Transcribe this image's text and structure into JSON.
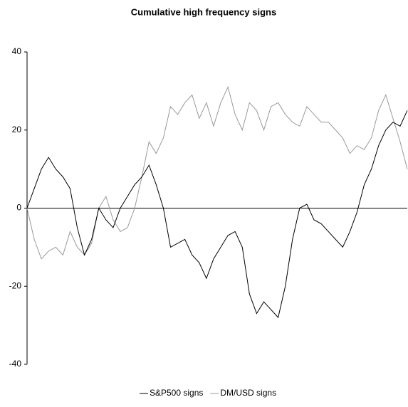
{
  "chart_data": {
    "type": "line",
    "title": "Cumulative high frequency signs",
    "categories": [
      null,
      null,
      null,
      null,
      null,
      null,
      null,
      null,
      null,
      null,
      null,
      null,
      null,
      null,
      null,
      null,
      null,
      null,
      null,
      null,
      null,
      null,
      null,
      null,
      null,
      null,
      null,
      null,
      null,
      null,
      null,
      null,
      null,
      null,
      null,
      null,
      null,
      null,
      null,
      null,
      null,
      null,
      null,
      null,
      null,
      null,
      null,
      null,
      null,
      null,
      null,
      null,
      null,
      null
    ],
    "series": [
      {
        "name": "S&P500 signs",
        "color": "#000000",
        "values": [
          0,
          5,
          10,
          13,
          10,
          8,
          5,
          -5,
          -12,
          -8,
          0,
          -3,
          -5,
          0,
          3,
          6,
          8,
          11,
          6,
          0,
          -10,
          -9,
          -8,
          -12,
          -14,
          -18,
          -13,
          -10,
          -7,
          -6,
          -10,
          -22,
          -27,
          -24,
          -26,
          -28,
          -20,
          -8,
          0,
          1,
          -3,
          -4,
          -6,
          -8,
          -10,
          -6,
          -1,
          6,
          10,
          16,
          20,
          22,
          21,
          25
        ]
      },
      {
        "name": "DM/USD signs",
        "color": "#999999",
        "values": [
          0,
          -8,
          -13,
          -11,
          -10,
          -12,
          -6,
          -10,
          -12,
          -9,
          0,
          3,
          -3,
          -6,
          -5,
          0,
          8,
          17,
          14,
          18,
          26,
          24,
          27,
          29,
          23,
          27,
          21,
          27,
          31,
          24,
          20,
          27,
          25,
          20,
          26,
          27,
          24,
          22,
          21,
          26,
          24,
          22,
          22,
          20,
          18,
          14,
          16,
          15,
          18,
          25,
          29,
          23,
          17,
          10
        ]
      }
    ],
    "ylim": [
      -40,
      40
    ],
    "yticks": [
      -40,
      -20,
      0,
      20,
      40
    ]
  }
}
